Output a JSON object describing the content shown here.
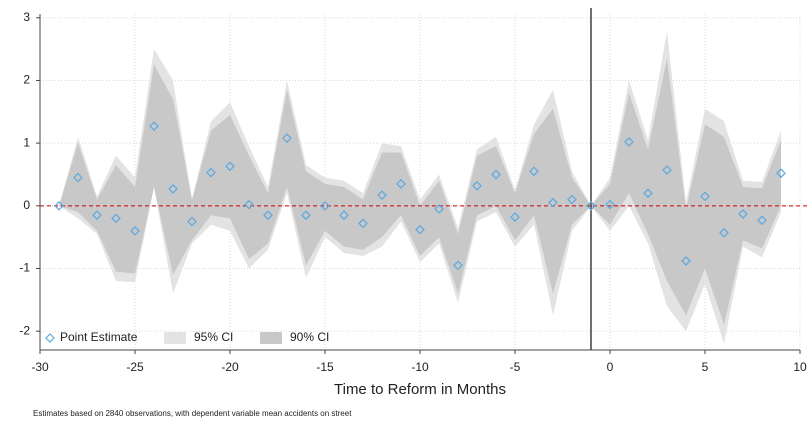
{
  "chart_data": {
    "type": "event-study",
    "x_label": "Time to Reform in Months",
    "note": "Estimates based on 2840 observations, with dependent variable mean accidents on street",
    "x": [
      -29,
      -28,
      -27,
      -26,
      -25,
      -24,
      -23,
      -22,
      -21,
      -20,
      -19,
      -18,
      -17,
      -16,
      -15,
      -14,
      -13,
      -12,
      -11,
      -10,
      -9,
      -8,
      -7,
      -6,
      -5,
      -4,
      -3,
      -2,
      -1,
      0,
      1,
      2,
      3,
      4,
      5,
      6,
      7,
      8,
      9
    ],
    "series": [
      {
        "name": "Point Estimate",
        "color": "#5aa9e0",
        "values": [
          0,
          0.45,
          -0.15,
          -0.2,
          -0.4,
          1.27,
          0.27,
          -0.25,
          0.53,
          0.63,
          0.02,
          -0.15,
          1.08,
          -0.15,
          0.0,
          -0.15,
          -0.28,
          0.17,
          0.35,
          -0.38,
          -0.05,
          -0.95,
          0.32,
          0.5,
          -0.18,
          0.55,
          0.05,
          0.1,
          0,
          0.02,
          1.02,
          0.2,
          0.57,
          -0.88,
          0.15,
          -0.43,
          -0.13,
          -0.23,
          0.52
        ]
      },
      {
        "name": "95% CI",
        "color": "#e3e3e3",
        "upper": [
          0,
          1.1,
          0.15,
          0.8,
          0.45,
          2.5,
          2.0,
          0.1,
          1.35,
          1.65,
          0.95,
          0.3,
          2.0,
          0.65,
          0.45,
          0.4,
          0.2,
          1.0,
          0.95,
          0.1,
          0.5,
          -0.35,
          0.9,
          1.1,
          0.25,
          1.3,
          1.85,
          0.55,
          0,
          0.45,
          2.0,
          1.05,
          2.78,
          0.05,
          1.55,
          1.35,
          0.4,
          0.38,
          1.2
        ],
        "lower": [
          0,
          -0.2,
          -0.45,
          -1.2,
          -1.22,
          0.3,
          -1.4,
          -0.6,
          -0.3,
          -0.4,
          -1.0,
          -0.7,
          0.2,
          -1.15,
          -0.5,
          -0.75,
          -0.8,
          -0.65,
          -0.25,
          -0.9,
          -0.6,
          -1.55,
          -0.25,
          -0.1,
          -0.65,
          -0.3,
          -1.75,
          -0.4,
          0,
          -0.4,
          0.0,
          -0.6,
          -1.6,
          -2.0,
          -1.25,
          -2.2,
          -0.65,
          -0.82,
          -0.1
        ]
      },
      {
        "name": "90% CI",
        "color": "#c8c8c8",
        "upper": [
          0,
          1.0,
          0.1,
          0.65,
          0.3,
          2.25,
          1.7,
          0.1,
          1.2,
          1.45,
          0.8,
          0.2,
          1.85,
          0.55,
          0.35,
          0.3,
          0.1,
          0.85,
          0.85,
          0.0,
          0.4,
          -0.45,
          0.8,
          0.95,
          0.2,
          1.15,
          1.55,
          0.45,
          0,
          0.35,
          1.8,
          0.9,
          2.35,
          -0.05,
          1.3,
          1.1,
          0.3,
          0.28,
          1.05
        ],
        "lower": [
          0,
          -0.1,
          -0.4,
          -1.05,
          -1.08,
          0.3,
          -1.1,
          -0.55,
          -0.15,
          -0.2,
          -0.85,
          -0.6,
          0.3,
          -0.95,
          -0.4,
          -0.65,
          -0.7,
          -0.5,
          -0.15,
          -0.8,
          -0.5,
          -1.4,
          -0.15,
          0.0,
          -0.55,
          -0.15,
          -1.4,
          -0.3,
          0,
          -0.3,
          0.2,
          -0.45,
          -1.2,
          -1.75,
          -1.0,
          -1.9,
          -0.55,
          -0.68,
          0.0
        ]
      }
    ],
    "xlim": [
      -30,
      10
    ],
    "ylim": [
      -2.3,
      3.06
    ],
    "xticks": [
      -30,
      -25,
      -20,
      -15,
      -10,
      -5,
      0,
      5,
      10
    ],
    "yticks": [
      -2,
      -1,
      0,
      1,
      2,
      3
    ],
    "grid": true,
    "vline": -1,
    "vline_color": "#222222",
    "hline": 0,
    "hline_color": "#cc0000",
    "legend": "lower left"
  }
}
